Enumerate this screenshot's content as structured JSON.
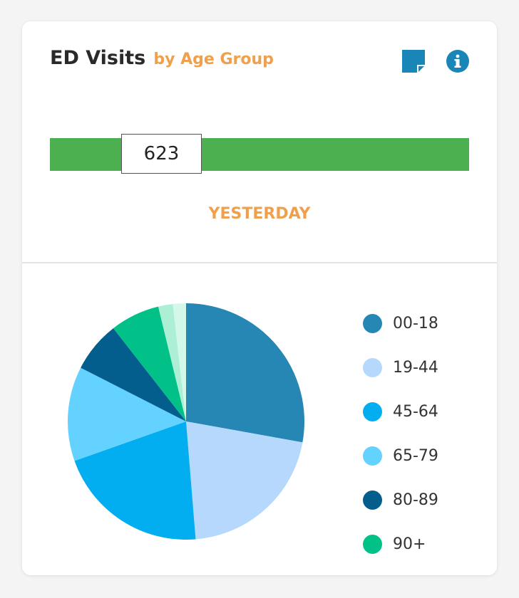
{
  "card": {
    "title": "ED Visits",
    "subtitle": "by Age Group",
    "accent_color": "#f0a04b",
    "note_icon": "sticky-note-icon",
    "info_icon": "info-icon",
    "icon_color": "#1a86b8"
  },
  "summary": {
    "value": "623",
    "period": "YESTERDAY",
    "bar_color": "#4caf50",
    "bar_fill": 1.0
  },
  "chart_data": {
    "type": "pie",
    "categories": [
      "00-18",
      "19-44",
      "45-64",
      "65-79",
      "80-89",
      "90+",
      "",
      ""
    ],
    "values": [
      28,
      21,
      21,
      13,
      7,
      6.8,
      2,
      1.8
    ],
    "colors": [
      "#2687b5",
      "#b6d8fd",
      "#03aef0",
      "#63d2ff",
      "#035e8e",
      "#01c189",
      "#adefd5",
      "#d3f8ea"
    ],
    "start_angle_deg": 0,
    "legend_position": "right"
  },
  "legend": [
    {
      "label": "00-18",
      "color": "#2687b5"
    },
    {
      "label": "19-44",
      "color": "#b6d8fd"
    },
    {
      "label": "45-64",
      "color": "#03aef0"
    },
    {
      "label": "65-79",
      "color": "#63d2ff"
    },
    {
      "label": "80-89",
      "color": "#035e8e"
    },
    {
      "label": "90+",
      "color": "#01c189"
    }
  ]
}
